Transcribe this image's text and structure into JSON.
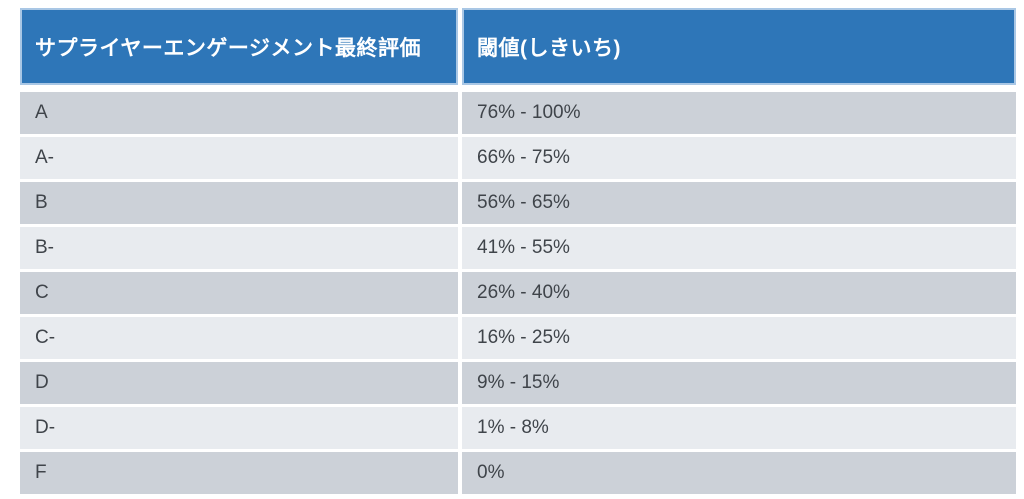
{
  "table": {
    "columns": [
      {
        "label": "サプライヤーエンゲージメント最終評価"
      },
      {
        "label": "閾値(しきいち)"
      }
    ],
    "rows": [
      {
        "rating": "A",
        "threshold": "76% - 100%"
      },
      {
        "rating": "A-",
        "threshold": "66% - 75%"
      },
      {
        "rating": "B",
        "threshold": "56% - 65%"
      },
      {
        "rating": "B-",
        "threshold": "41% - 55%"
      },
      {
        "rating": "C",
        "threshold": "26% - 40%"
      },
      {
        "rating": "C-",
        "threshold": "16% - 25%"
      },
      {
        "rating": "D",
        "threshold": "9% - 15%"
      },
      {
        "rating": "D-",
        "threshold": "1% - 8%"
      },
      {
        "rating": "F",
        "threshold": "0%"
      }
    ],
    "colors": {
      "header_bg": "#2e76b8",
      "header_text": "#ffffff",
      "header_outline": "#a9c7e5",
      "band_dark": "#ccd1d8",
      "band_light": "#e8ebef",
      "body_text": "#3f444a",
      "page_bg": "#ffffff"
    }
  }
}
